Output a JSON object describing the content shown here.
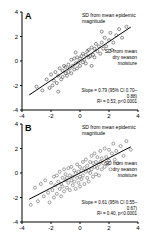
{
  "chart_data": [
    {
      "type": "scatter",
      "title": "A",
      "x_label": "SD from mean dry season moisture",
      "y_label": "SD from mean epidemic magnitude",
      "annotations": [
        "Slope = 0.79 (95% CI 0.70–0.88)",
        "R² = 0.53, p<0.0001"
      ],
      "xlim": [
        -4,
        4
      ],
      "xticks": [
        -4,
        -2,
        0,
        2,
        4
      ],
      "ylim": [
        -4,
        4
      ],
      "yticks": [
        -4,
        -2,
        0,
        2,
        4
      ],
      "series": [
        {
          "type": "scatter",
          "marker": "circle",
          "color": "#444444",
          "x": [
            -2.6,
            -2.3,
            -2.1,
            -2.0,
            -1.9,
            -1.8,
            -1.7,
            -1.6,
            -1.5,
            -1.4,
            -1.3,
            -1.2,
            -1.2,
            -1.1,
            -1.0,
            -1.0,
            -0.9,
            -0.8,
            -0.8,
            -0.7,
            -0.6,
            -0.6,
            -0.5,
            -0.4,
            -0.4,
            -0.3,
            -0.2,
            -0.2,
            -0.1,
            0.0,
            0.0,
            0.1,
            0.2,
            0.2,
            0.3,
            0.4,
            0.4,
            0.5,
            0.6,
            0.6,
            0.7,
            0.8,
            0.9,
            1.0,
            1.0,
            1.1,
            1.2,
            1.3,
            1.4,
            1.5,
            1.6,
            1.7,
            1.8,
            2.0,
            2.1,
            2.3,
            2.5,
            2.7,
            2.9,
            3.2,
            -3.0,
            -0.3,
            0.8,
            1.5,
            -1.5,
            2.2
          ],
          "values": [
            -2.4,
            -1.5,
            -2.2,
            -1.1,
            -2.0,
            -1.6,
            -0.9,
            -1.8,
            -1.2,
            -0.6,
            -1.5,
            -0.8,
            -1.3,
            -0.4,
            -1.0,
            -0.5,
            -1.2,
            -0.3,
            -0.9,
            -0.6,
            0.1,
            -1.0,
            -0.4,
            -0.7,
            0.2,
            -0.2,
            -0.6,
            0.3,
            -0.1,
            0.2,
            -0.4,
            0.4,
            -0.1,
            0.6,
            0.1,
            0.5,
            -0.2,
            0.8,
            0.3,
            0.9,
            0.4,
            1.1,
            0.5,
            1.0,
            0.3,
            1.4,
            0.8,
            1.2,
            0.6,
            1.5,
            1.0,
            1.9,
            1.2,
            1.7,
            2.3,
            1.5,
            2.1,
            2.6,
            1.9,
            2.8,
            -2.1,
            0.7,
            -0.4,
            2.4,
            -2.5,
            0.9
          ]
        },
        {
          "type": "line",
          "line_style": "solid",
          "color": "#000000",
          "x": [
            -3.5,
            3.5
          ],
          "values": [
            -2.77,
            2.77
          ]
        }
      ]
    },
    {
      "type": "scatter",
      "title": "B",
      "x_label": "SD from mean dry season moisture",
      "y_label": "SD from mean epidemic magnitude",
      "annotations": [
        "Slope = 0.61 (95% CI 0.55–0.67)",
        "R² = 0.40, p<0.0001"
      ],
      "xlim": [
        -4,
        4
      ],
      "xticks": [
        -4,
        -2,
        0,
        2,
        4
      ],
      "ylim": [
        -4,
        4
      ],
      "yticks": [
        -4,
        -2,
        0,
        2,
        4
      ],
      "series": [
        {
          "type": "scatter",
          "marker": "circle",
          "color": "#666666",
          "x": [
            -3.4,
            -3.1,
            -2.9,
            -2.7,
            -2.5,
            -2.4,
            -2.2,
            -2.1,
            -2.0,
            -1.9,
            -1.8,
            -1.8,
            -1.7,
            -1.6,
            -1.6,
            -1.5,
            -1.4,
            -1.4,
            -1.3,
            -1.3,
            -1.2,
            -1.2,
            -1.1,
            -1.1,
            -1.0,
            -1.0,
            -0.9,
            -0.9,
            -0.8,
            -0.8,
            -0.7,
            -0.7,
            -0.6,
            -0.6,
            -0.5,
            -0.5,
            -0.4,
            -0.4,
            -0.3,
            -0.3,
            -0.2,
            -0.2,
            -0.1,
            -0.1,
            0.0,
            0.0,
            0.0,
            0.1,
            0.1,
            0.2,
            0.2,
            0.3,
            0.3,
            0.4,
            0.4,
            0.5,
            0.5,
            0.6,
            0.6,
            0.7,
            0.7,
            0.8,
            0.8,
            0.9,
            0.9,
            1.0,
            1.0,
            1.1,
            1.1,
            1.2,
            1.2,
            1.3,
            1.3,
            1.4,
            1.4,
            1.5,
            1.5,
            1.6,
            1.7,
            1.7,
            1.8,
            1.9,
            2.0,
            2.0,
            2.1,
            2.2,
            2.3,
            2.4,
            2.5,
            2.6,
            2.8,
            3.0,
            3.2,
            3.5
          ],
          "values": [
            -2.6,
            -1.2,
            -2.3,
            -0.9,
            -1.9,
            -0.6,
            -1.6,
            -2.4,
            -0.8,
            -1.4,
            -0.3,
            -2.0,
            -1.0,
            -0.2,
            -1.7,
            -0.7,
            -1.3,
            0.1,
            -0.9,
            -1.9,
            -0.4,
            -1.1,
            0.3,
            -1.5,
            -0.6,
            -0.1,
            -1.2,
            -0.4,
            0.4,
            -0.8,
            -1.4,
            -0.2,
            -0.6,
            0.5,
            -1.0,
            -0.3,
            0.2,
            -0.7,
            -1.3,
            0.0,
            -0.4,
            0.7,
            -0.8,
            0.1,
            -0.3,
            0.5,
            -1.1,
            0.2,
            -0.5,
            0.9,
            -0.2,
            0.4,
            -0.9,
            0.1,
            1.1,
            -0.4,
            0.6,
            0.2,
            -0.7,
            0.9,
            0.0,
            1.4,
            0.3,
            -0.3,
            0.8,
            0.5,
            1.6,
            -0.1,
            0.9,
            0.4,
            1.3,
            0.7,
            -0.2,
            1.8,
            0.9,
            0.3,
            1.2,
            0.8,
            2.0,
            0.5,
            1.3,
            0.7,
            1.9,
            1.0,
            0.3,
            1.6,
            2.4,
            1.1,
            1.8,
            0.8,
            2.2,
            1.4,
            2.6,
            1.9
          ]
        },
        {
          "type": "line",
          "line_style": "solid",
          "color": "#000000",
          "x": [
            -3.5,
            3.5
          ],
          "values": [
            -2.14,
            2.14
          ]
        }
      ]
    }
  ]
}
